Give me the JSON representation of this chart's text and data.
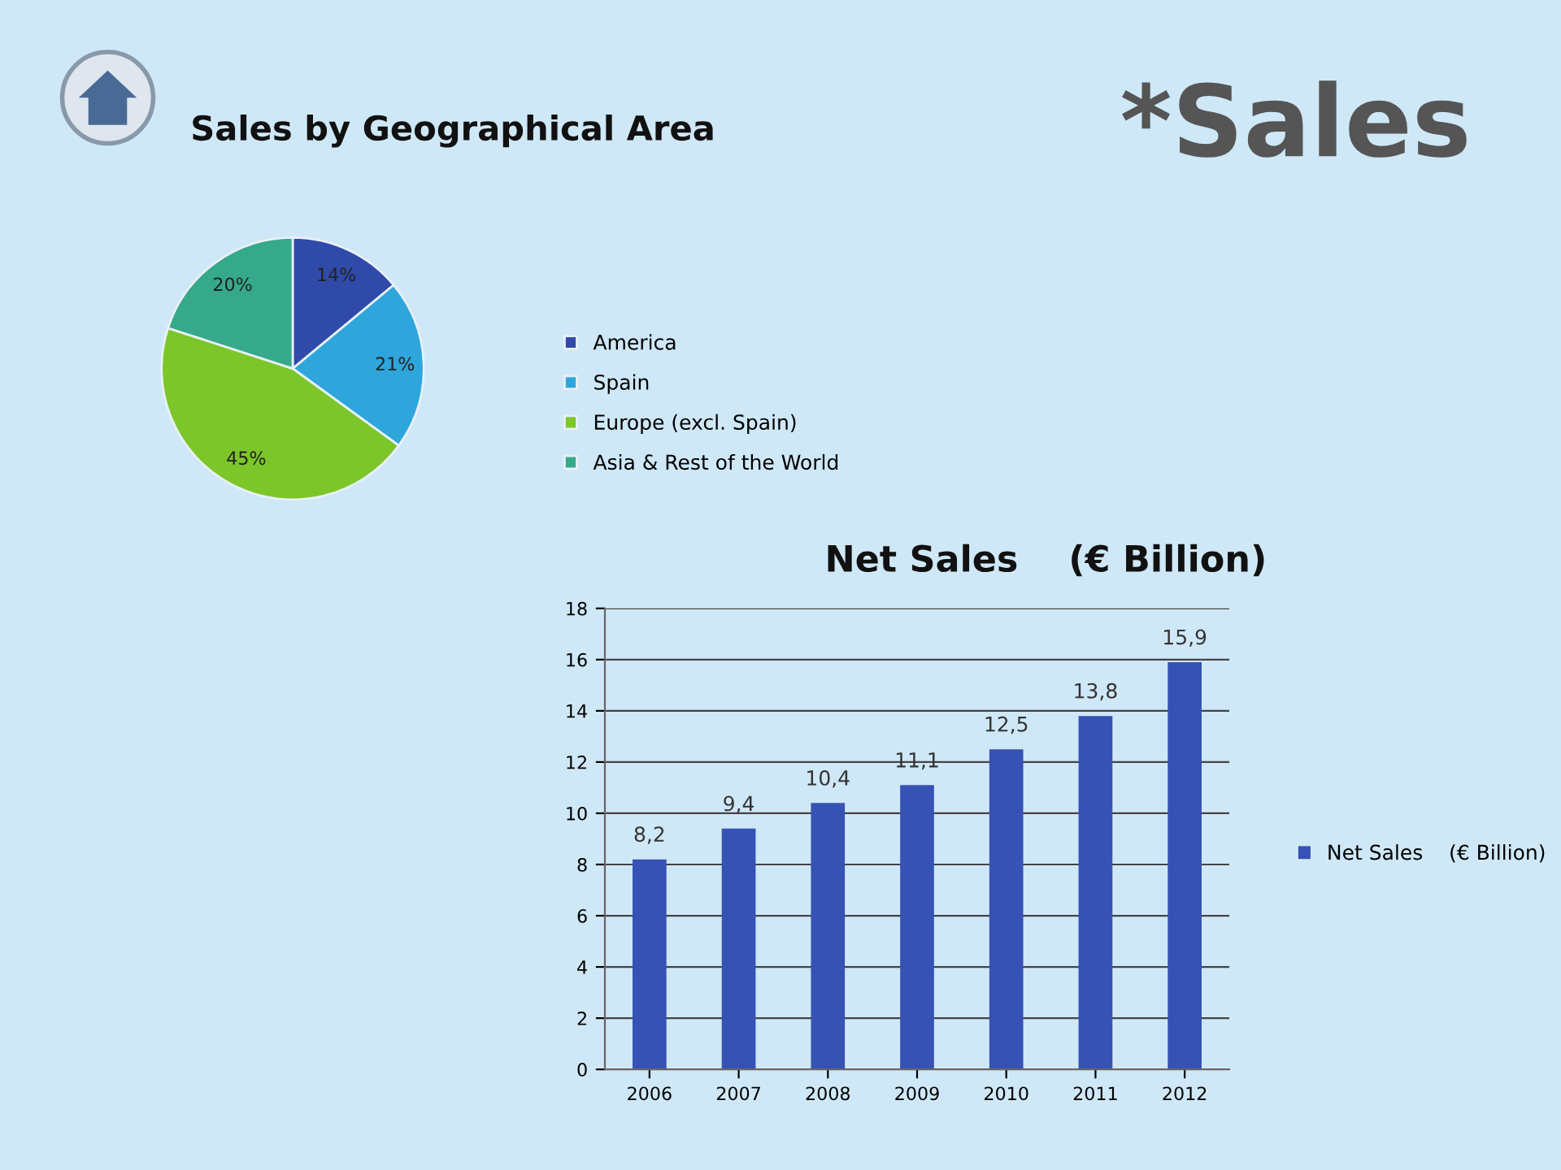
{
  "chart_data": [
    {
      "type": "pie",
      "title": "Sales by Geographical Area",
      "annotations": [
        "*Sales"
      ],
      "categories": [
        "America",
        "Spain",
        "Europe (excl. Spain)",
        "Asia & Rest of the World"
      ],
      "values": [
        14,
        21,
        45,
        20
      ],
      "value_labels": [
        "14%",
        "21%",
        "45%",
        "20%"
      ],
      "colors": [
        "#2f4aa8",
        "#2ea6dc",
        "#7cc62a",
        "#36a98a"
      ],
      "legend": "right"
    },
    {
      "type": "bar",
      "title": "Net Sales    (€ Billion)",
      "categories": [
        "2006",
        "2007",
        "2008",
        "2009",
        "2010",
        "2011",
        "2012"
      ],
      "series": [
        {
          "name": "Net Sales    (€ Billion)",
          "color": "#3652b4",
          "values": [
            8.2,
            9.4,
            10.4,
            11.1,
            12.5,
            13.8,
            15.9
          ],
          "value_labels": [
            "8,2",
            "9,4",
            "10,4",
            "11,1",
            "12,5",
            "13,8",
            "15,9"
          ]
        }
      ],
      "ylim": [
        0,
        18
      ],
      "yticks": [
        0,
        2,
        4,
        6,
        8,
        10,
        12,
        14,
        16,
        18
      ],
      "grid": "y",
      "legend": "right"
    }
  ]
}
